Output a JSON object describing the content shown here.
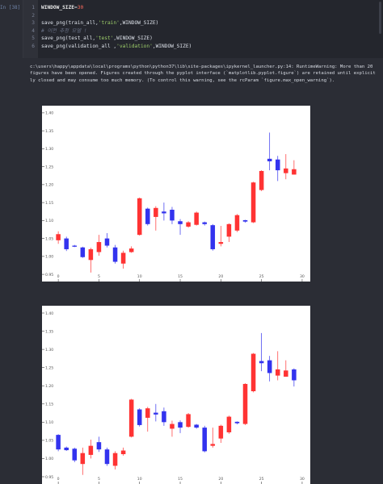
{
  "prompt": "In [38]:",
  "code_lines": [
    {
      "n": "1",
      "parts": [
        {
          "t": "WINDOW_SIZE",
          "c": "kw-var"
        },
        {
          "t": "=",
          "c": "plain"
        },
        {
          "t": "30",
          "c": "num"
        }
      ]
    },
    {
      "n": "2",
      "parts": []
    },
    {
      "n": "3",
      "parts": [
        {
          "t": "save_png(train_all,",
          "c": "plain"
        },
        {
          "t": "'train'",
          "c": "str"
        },
        {
          "t": ",WINDOW_SIZE)",
          "c": "plain"
        }
      ]
    },
    {
      "n": "4",
      "parts": [
        {
          "t": "# 이전 추정 모델 !",
          "c": "cmt"
        }
      ]
    },
    {
      "n": "5",
      "parts": [
        {
          "t": "save_png(test_all,",
          "c": "plain"
        },
        {
          "t": "'test'",
          "c": "str"
        },
        {
          "t": ",WINDOW_SIZE)",
          "c": "plain"
        }
      ]
    },
    {
      "n": "6",
      "parts": [
        {
          "t": "save_png(validation_all ,",
          "c": "plain"
        },
        {
          "t": "'validation'",
          "c": "str"
        },
        {
          "t": ",WINDOW_SIZE)",
          "c": "plain"
        }
      ]
    }
  ],
  "warning": "c:\\users\\happy\\appdata\\local\\programs\\python\\python37\\lib\\site-packages\\ipykernel_launcher.py:14: RuntimeWarning: More than 20 figures have been opened. Figures created through the pyplot interface (`matplotlib.pyplot.figure`) are retained until explicitly closed and may consume too much memory. (To control this warning, see the rcParam `figure.max_open_warning`).",
  "colors": {
    "up": "#ff3333",
    "down": "#3333ee",
    "background": "#2b2d35"
  },
  "chart_data": [
    {
      "type": "candlestick",
      "xlim": [
        -2,
        31
      ],
      "ylim": [
        0.93,
        1.42
      ],
      "xticks": [
        "0",
        "5",
        "10",
        "15",
        "20",
        "25",
        "30"
      ],
      "yticks": [
        "0.95",
        "1.00",
        "1.05",
        "1.10",
        "1.15",
        "1.20",
        "1.25",
        "1.30",
        "1.35",
        "1.40"
      ],
      "candles": [
        {
          "x": 0,
          "open": 1.045,
          "close": 1.062,
          "high": 1.07,
          "low": 1.035
        },
        {
          "x": 1,
          "open": 1.05,
          "close": 1.02,
          "high": 1.055,
          "low": 1.015
        },
        {
          "x": 2,
          "open": 1.03,
          "close": 1.027,
          "high": 1.032,
          "low": 1.026
        },
        {
          "x": 3,
          "open": 1.025,
          "close": 0.998,
          "high": 1.027,
          "low": 0.996
        },
        {
          "x": 4,
          "open": 0.99,
          "close": 1.02,
          "high": 1.024,
          "low": 0.955
        },
        {
          "x": 5,
          "open": 1.012,
          "close": 1.04,
          "high": 1.06,
          "low": 1.002
        },
        {
          "x": 6,
          "open": 1.05,
          "close": 1.03,
          "high": 1.065,
          "low": 1.025
        },
        {
          "x": 7,
          "open": 1.025,
          "close": 0.985,
          "high": 1.032,
          "low": 0.98
        },
        {
          "x": 8,
          "open": 0.98,
          "close": 1.01,
          "high": 1.016,
          "low": 0.966
        },
        {
          "x": 9,
          "open": 1.012,
          "close": 1.022,
          "high": 1.028,
          "low": 1.01
        },
        {
          "x": 10,
          "open": 1.06,
          "close": 1.162,
          "high": 1.164,
          "low": 1.058
        },
        {
          "x": 11,
          "open": 1.133,
          "close": 1.09,
          "high": 1.136,
          "low": 1.086
        },
        {
          "x": 12,
          "open": 1.11,
          "close": 1.135,
          "high": 1.14,
          "low": 1.072
        },
        {
          "x": 13,
          "open": 1.125,
          "close": 1.12,
          "high": 1.15,
          "low": 1.1
        },
        {
          "x": 14,
          "open": 1.13,
          "close": 1.1,
          "high": 1.138,
          "low": 1.09
        },
        {
          "x": 15,
          "open": 1.098,
          "close": 1.09,
          "high": 1.104,
          "low": 1.06
        },
        {
          "x": 16,
          "open": 1.083,
          "close": 1.095,
          "high": 1.098,
          "low": 1.08
        },
        {
          "x": 17,
          "open": 1.088,
          "close": 1.122,
          "high": 1.125,
          "low": 1.086
        },
        {
          "x": 18,
          "open": 1.095,
          "close": 1.09,
          "high": 1.097,
          "low": 1.086
        },
        {
          "x": 19,
          "open": 1.087,
          "close": 1.02,
          "high": 1.09,
          "low": 1.016
        },
        {
          "x": 20,
          "open": 1.035,
          "close": 1.04,
          "high": 1.085,
          "low": 1.028
        },
        {
          "x": 21,
          "open": 1.055,
          "close": 1.09,
          "high": 1.092,
          "low": 1.04
        },
        {
          "x": 22,
          "open": 1.072,
          "close": 1.115,
          "high": 1.118,
          "low": 1.068
        },
        {
          "x": 23,
          "open": 1.101,
          "close": 1.097,
          "high": 1.102,
          "low": 1.094
        },
        {
          "x": 24,
          "open": 1.095,
          "close": 1.206,
          "high": 1.208,
          "low": 1.093
        },
        {
          "x": 25,
          "open": 1.185,
          "close": 1.238,
          "high": 1.24,
          "low": 1.182
        },
        {
          "x": 26,
          "open": 1.272,
          "close": 1.265,
          "high": 1.345,
          "low": 1.24
        },
        {
          "x": 27,
          "open": 1.27,
          "close": 1.24,
          "high": 1.28,
          "low": 1.21
        },
        {
          "x": 28,
          "open": 1.232,
          "close": 1.245,
          "high": 1.285,
          "low": 1.215
        },
        {
          "x": 29,
          "open": 1.228,
          "close": 1.243,
          "high": 1.268,
          "low": 1.228
        }
      ]
    },
    {
      "type": "candlestick",
      "xlim": [
        -2,
        31
      ],
      "ylim": [
        0.93,
        1.42
      ],
      "xticks": [
        "0",
        "5",
        "10",
        "15",
        "20",
        "25",
        "30"
      ],
      "yticks": [
        "0.95",
        "1.00",
        "1.05",
        "1.10",
        "1.15",
        "1.20",
        "1.25",
        "1.30",
        "1.35",
        "1.40"
      ],
      "candles": [
        {
          "x": 0,
          "open": 1.065,
          "close": 1.025,
          "high": 1.067,
          "low": 1.02
        },
        {
          "x": 1,
          "open": 1.03,
          "close": 1.023,
          "high": 1.033,
          "low": 1.021
        },
        {
          "x": 2,
          "open": 1.027,
          "close": 0.995,
          "high": 1.03,
          "low": 0.99
        },
        {
          "x": 3,
          "open": 0.985,
          "close": 1.015,
          "high": 1.03,
          "low": 0.955
        },
        {
          "x": 4,
          "open": 1.01,
          "close": 1.035,
          "high": 1.052,
          "low": 1.0
        },
        {
          "x": 5,
          "open": 1.045,
          "close": 1.025,
          "high": 1.06,
          "low": 1.018
        },
        {
          "x": 6,
          "open": 1.025,
          "close": 0.985,
          "high": 1.03,
          "low": 0.98
        },
        {
          "x": 7,
          "open": 0.98,
          "close": 1.015,
          "high": 1.02,
          "low": 0.97
        },
        {
          "x": 8,
          "open": 1.012,
          "close": 1.022,
          "high": 1.03,
          "low": 1.008
        },
        {
          "x": 9,
          "open": 1.06,
          "close": 1.162,
          "high": 1.164,
          "low": 1.058
        },
        {
          "x": 10,
          "open": 1.135,
          "close": 1.092,
          "high": 1.138,
          "low": 1.088
        },
        {
          "x": 11,
          "open": 1.112,
          "close": 1.138,
          "high": 1.142,
          "low": 1.074
        },
        {
          "x": 12,
          "open": 1.126,
          "close": 1.121,
          "high": 1.15,
          "low": 1.102
        },
        {
          "x": 13,
          "open": 1.13,
          "close": 1.1,
          "high": 1.14,
          "low": 1.09
        },
        {
          "x": 14,
          "open": 1.082,
          "close": 1.095,
          "high": 1.104,
          "low": 1.06
        },
        {
          "x": 15,
          "open": 1.1,
          "close": 1.085,
          "high": 1.105,
          "low": 1.07
        },
        {
          "x": 16,
          "open": 1.087,
          "close": 1.122,
          "high": 1.125,
          "low": 1.085
        },
        {
          "x": 17,
          "open": 1.093,
          "close": 1.085,
          "high": 1.095,
          "low": 1.082
        },
        {
          "x": 18,
          "open": 1.085,
          "close": 1.02,
          "high": 1.09,
          "low": 1.017
        },
        {
          "x": 19,
          "open": 1.035,
          "close": 1.04,
          "high": 1.085,
          "low": 1.03
        },
        {
          "x": 20,
          "open": 1.055,
          "close": 1.09,
          "high": 1.093,
          "low": 1.043
        },
        {
          "x": 21,
          "open": 1.072,
          "close": 1.115,
          "high": 1.118,
          "low": 1.068
        },
        {
          "x": 22,
          "open": 1.101,
          "close": 1.097,
          "high": 1.102,
          "low": 1.094
        },
        {
          "x": 23,
          "open": 1.095,
          "close": 1.205,
          "high": 1.207,
          "low": 1.092
        },
        {
          "x": 24,
          "open": 1.185,
          "close": 1.288,
          "high": 1.29,
          "low": 1.182
        },
        {
          "x": 25,
          "open": 1.268,
          "close": 1.262,
          "high": 1.345,
          "low": 1.24
        },
        {
          "x": 26,
          "open": 1.27,
          "close": 1.235,
          "high": 1.282,
          "low": 1.212
        },
        {
          "x": 27,
          "open": 1.228,
          "close": 1.245,
          "high": 1.295,
          "low": 1.215
        },
        {
          "x": 28,
          "open": 1.225,
          "close": 1.242,
          "high": 1.27,
          "low": 1.225
        },
        {
          "x": 29,
          "open": 1.245,
          "close": 1.215,
          "high": 1.248,
          "low": 1.198
        }
      ]
    }
  ]
}
